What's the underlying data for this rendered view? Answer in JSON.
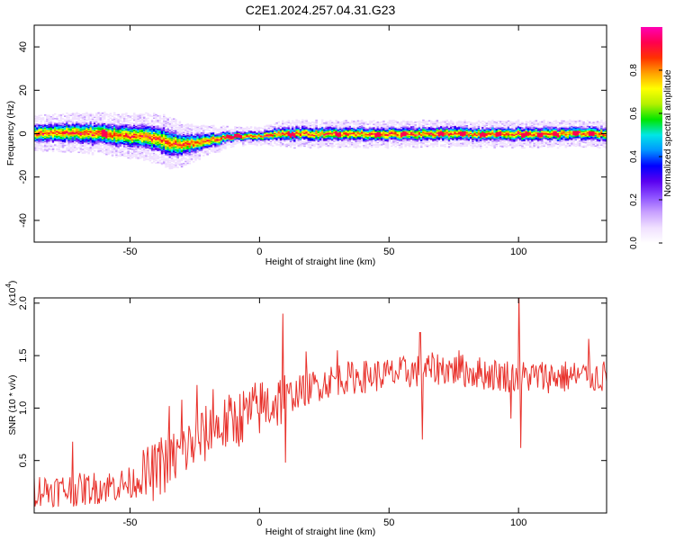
{
  "title": "C2E1.2024.257.04.31.G23",
  "chart_data": [
    {
      "type": "heatmap",
      "title": "C2E1.2024.257.04.31.G23",
      "xlabel": "Height of straight line (km)",
      "ylabel": "Frequency (Hz)",
      "xlim": [
        -87,
        134
      ],
      "ylim": [
        -50,
        50
      ],
      "xticks": [
        -50,
        0,
        50,
        100
      ],
      "yticks": [
        -40,
        -20,
        0,
        20,
        40
      ],
      "colorbar": {
        "label": "Normalized spectral amplitude",
        "range": [
          0,
          1
        ],
        "ticks": [
          0.0,
          0.2,
          0.4,
          0.6,
          0.8
        ],
        "colors": [
          "#ffffff",
          "#f0e0ff",
          "#c8a0ff",
          "#8c50ff",
          "#5a00f0",
          "#0000ff",
          "#0096ff",
          "#00e6e6",
          "#00e600",
          "#b4f000",
          "#ffff00",
          "#ffa000",
          "#ff3200",
          "#ff0050",
          "#ff00b4"
        ]
      },
      "band_center_hz": [
        [
          -87,
          0
        ],
        [
          -80,
          0.5
        ],
        [
          -70,
          0.5
        ],
        [
          -60,
          0
        ],
        [
          -50,
          -1
        ],
        [
          -40,
          -2
        ],
        [
          -35,
          -4
        ],
        [
          -30,
          -5
        ],
        [
          -20,
          -3
        ],
        [
          -10,
          -1
        ],
        [
          0,
          -1
        ],
        [
          5,
          0
        ],
        [
          10,
          0
        ],
        [
          20,
          0
        ],
        [
          50,
          0
        ],
        [
          100,
          0
        ],
        [
          134,
          0
        ]
      ],
      "band_halfwidth_hz": [
        [
          -87,
          4
        ],
        [
          -70,
          4.5
        ],
        [
          -50,
          5
        ],
        [
          -35,
          6
        ],
        [
          -25,
          4
        ],
        [
          -10,
          2
        ],
        [
          0,
          2
        ],
        [
          10,
          3
        ],
        [
          50,
          3
        ],
        [
          100,
          3
        ],
        [
          134,
          3
        ]
      ],
      "peak_amplitude_x_km": [
        -60,
        -12,
        -10,
        -8,
        12,
        30,
        45,
        55,
        70,
        78,
        86,
        92,
        102,
        108,
        114,
        122,
        128
      ]
    },
    {
      "type": "line",
      "xlabel": "Height of straight line (km)",
      "ylabel": "SNR (10 * v/v)",
      "y_multiplier": "(x10",
      "y_multiplier_exponent": "4",
      "y_multiplier_close": ")",
      "xlim": [
        -87,
        134
      ],
      "ylim": [
        0,
        2.05
      ],
      "xticks": [
        -50,
        0,
        50,
        100
      ],
      "yticks": [
        0.5,
        1.0,
        1.5,
        2.0
      ],
      "ytick_labels": [
        "0.5",
        "1.0",
        "1.5",
        "2.0"
      ],
      "series_color": "#e8312b",
      "trend": {
        "x": [
          -87,
          -70,
          -50,
          -40,
          -30,
          -20,
          -10,
          0,
          10,
          20,
          30,
          40,
          50,
          60,
          70,
          80,
          90,
          100,
          110,
          120,
          134
        ],
        "y": [
          0.22,
          0.22,
          0.28,
          0.4,
          0.58,
          0.76,
          0.88,
          1.0,
          1.1,
          1.2,
          1.28,
          1.3,
          1.32,
          1.35,
          1.38,
          1.35,
          1.32,
          1.3,
          1.3,
          1.3,
          1.3
        ]
      },
      "spikes": [
        [
          -72,
          0.68
        ],
        [
          -45,
          0.6
        ],
        [
          -38,
          0.72
        ],
        [
          -35,
          1.02
        ],
        [
          -30,
          1.08
        ],
        [
          -24,
          1.22
        ],
        [
          -18,
          1.18
        ],
        [
          -5,
          1.1
        ],
        [
          9,
          1.9
        ],
        [
          10,
          0.48
        ],
        [
          18,
          1.54
        ],
        [
          30,
          1.55
        ],
        [
          62,
          1.72
        ],
        [
          63,
          0.7
        ],
        [
          77,
          1.55
        ],
        [
          97,
          0.9
        ],
        [
          100,
          2.1
        ],
        [
          101,
          0.62
        ],
        [
          127,
          1.66
        ]
      ]
    }
  ]
}
